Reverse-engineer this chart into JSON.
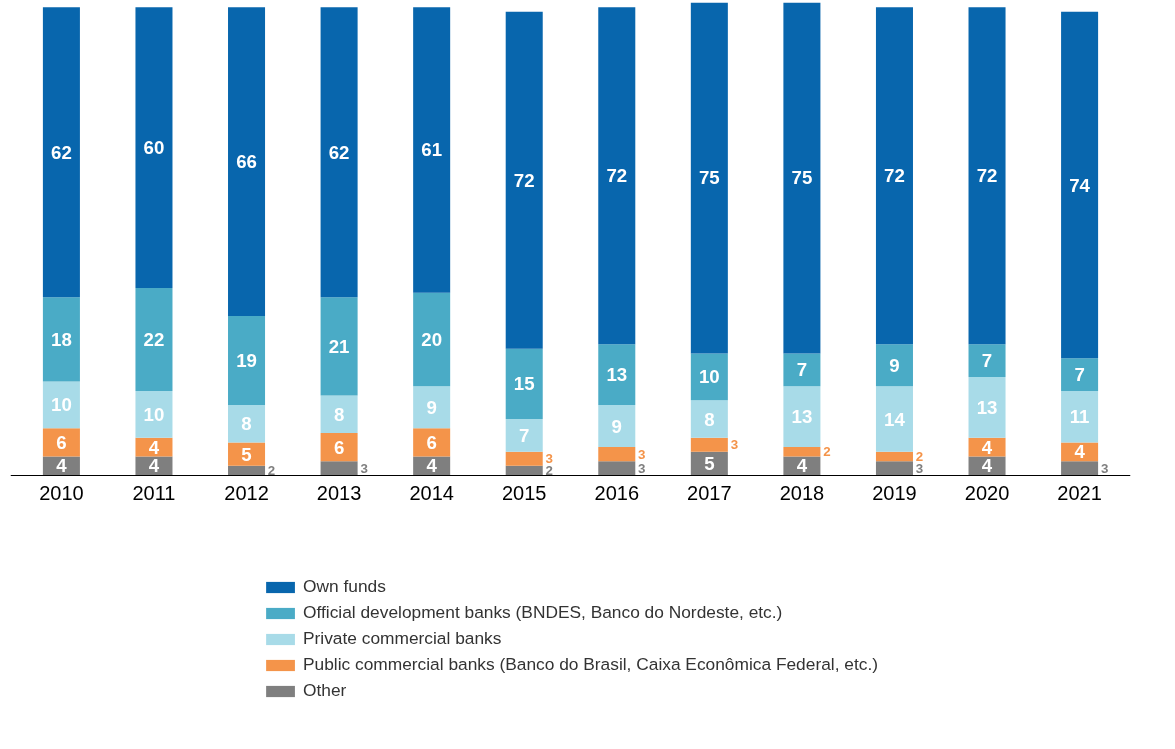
{
  "chart_data": {
    "type": "bar",
    "stacked": true,
    "data_labels": true,
    "legend": "bottom",
    "grid": false,
    "categories": [
      "2010",
      "2011",
      "2012",
      "2013",
      "2014",
      "2015",
      "2016",
      "2017",
      "2018",
      "2019",
      "2020",
      "2021"
    ],
    "series": [
      {
        "name": "Other",
        "color": "#7f7f7f",
        "values": [
          4,
          4,
          2,
          3,
          4,
          2,
          3,
          5,
          4,
          3,
          4,
          3
        ]
      },
      {
        "name": "Public commercial banks (Banco do Brasil, Caixa Econômica Federal, etc.)",
        "color": "#f4944a",
        "values": [
          6,
          4,
          5,
          6,
          6,
          3,
          3,
          3,
          2,
          2,
          4,
          4
        ]
      },
      {
        "name": "Private commercial banks",
        "color": "#a8dbe8",
        "values": [
          10,
          10,
          8,
          8,
          9,
          7,
          9,
          8,
          13,
          14,
          13,
          11
        ]
      },
      {
        "name": "Official development banks (BNDES, Banco do Nordeste, etc.)",
        "color": "#4aabc6",
        "values": [
          18,
          22,
          19,
          21,
          20,
          15,
          13,
          10,
          7,
          9,
          7,
          7
        ]
      },
      {
        "name": "Own funds",
        "color": "#0866ad",
        "values": [
          62,
          60,
          66,
          62,
          61,
          72,
          72,
          75,
          75,
          72,
          72,
          74
        ]
      }
    ]
  }
}
